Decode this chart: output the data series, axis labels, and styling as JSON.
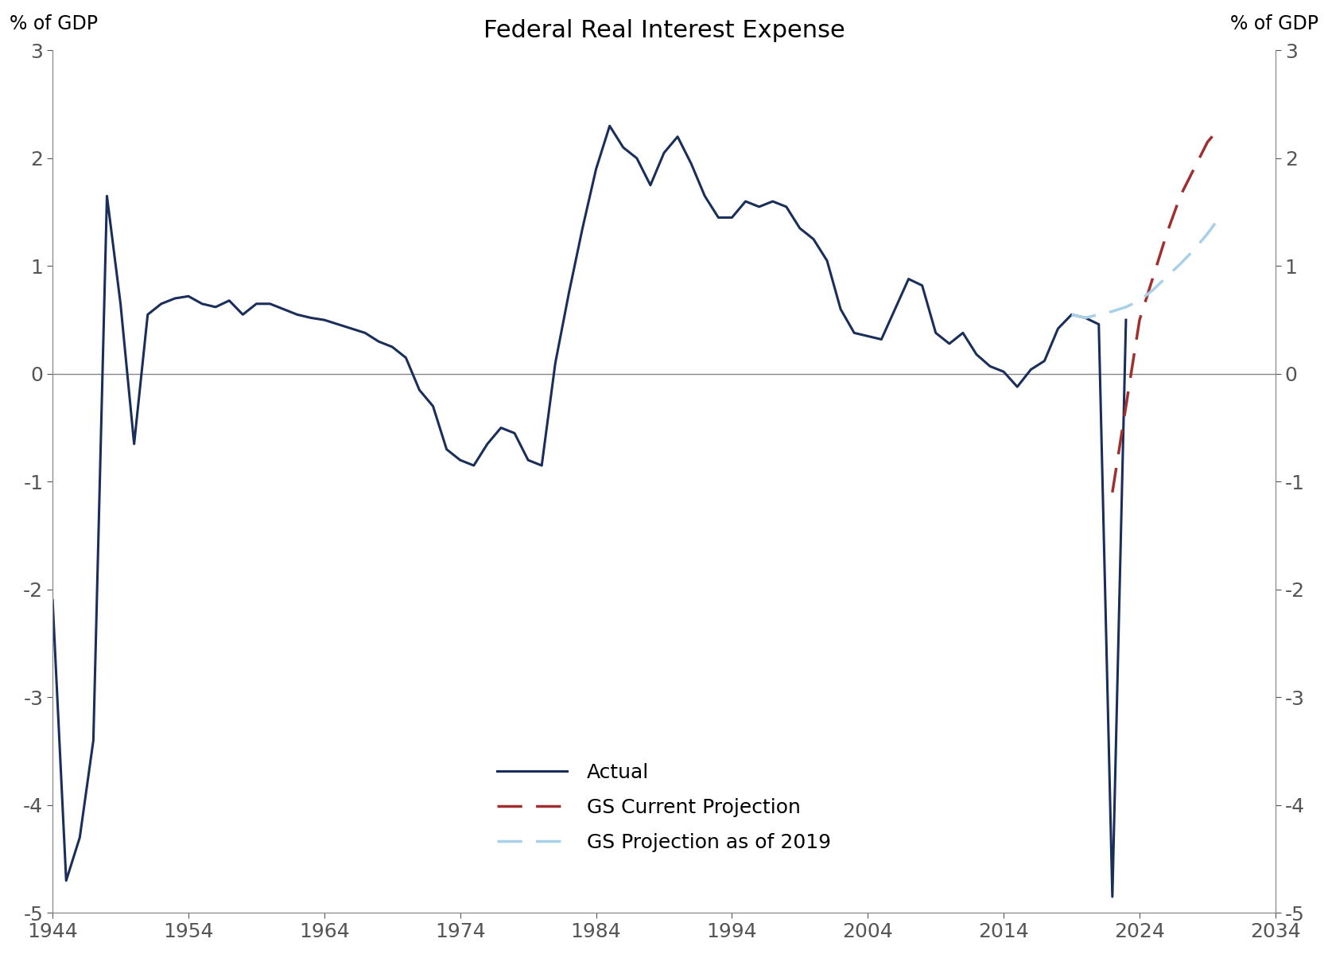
{
  "title": "Federal Real Interest Expense",
  "ylabel_left": "% of GDP",
  "ylabel_right": "% of GDP",
  "ylim": [
    -5,
    3
  ],
  "yticks": [
    -5,
    -4,
    -3,
    -2,
    -1,
    0,
    1,
    2,
    3
  ],
  "xlim": [
    1944,
    2034
  ],
  "xticks": [
    1944,
    1954,
    1964,
    1974,
    1984,
    1994,
    2004,
    2014,
    2024,
    2034
  ],
  "background_color": "#ffffff",
  "actual_color": "#1a2e5a",
  "gs_current_color": "#a03030",
  "gs_2019_color": "#a8d0e6",
  "actual_data": {
    "years": [
      1944,
      1945,
      1946,
      1947,
      1948,
      1949,
      1950,
      1951,
      1952,
      1953,
      1954,
      1955,
      1956,
      1957,
      1958,
      1959,
      1960,
      1961,
      1962,
      1963,
      1964,
      1965,
      1966,
      1967,
      1968,
      1969,
      1970,
      1971,
      1972,
      1973,
      1974,
      1975,
      1976,
      1977,
      1978,
      1979,
      1980,
      1981,
      1982,
      1983,
      1984,
      1985,
      1986,
      1987,
      1988,
      1989,
      1990,
      1991,
      1992,
      1993,
      1994,
      1995,
      1996,
      1997,
      1998,
      1999,
      2000,
      2001,
      2002,
      2003,
      2004,
      2005,
      2006,
      2007,
      2008,
      2009,
      2010,
      2011,
      2012,
      2013,
      2014,
      2015,
      2016,
      2017,
      2018,
      2019,
      2020,
      2021,
      2022,
      2023
    ],
    "values": [
      -2.1,
      -4.7,
      -4.3,
      -3.4,
      1.65,
      0.65,
      -0.65,
      0.55,
      0.65,
      0.7,
      0.72,
      0.65,
      0.62,
      0.68,
      0.55,
      0.65,
      0.65,
      0.6,
      0.55,
      0.52,
      0.5,
      0.46,
      0.42,
      0.38,
      0.3,
      0.25,
      0.15,
      -0.15,
      -0.3,
      -0.7,
      -0.8,
      -0.85,
      -0.65,
      -0.5,
      -0.55,
      -0.8,
      -0.85,
      0.1,
      0.75,
      1.35,
      1.9,
      2.3,
      2.1,
      2.0,
      1.75,
      2.05,
      2.2,
      1.95,
      1.65,
      1.45,
      1.45,
      1.6,
      1.55,
      1.6,
      1.55,
      1.35,
      1.25,
      1.05,
      0.6,
      0.38,
      0.35,
      0.32,
      0.6,
      0.88,
      0.82,
      0.38,
      0.28,
      0.38,
      0.18,
      0.07,
      0.02,
      -0.12,
      0.04,
      0.12,
      0.42,
      0.55,
      0.52,
      0.46,
      -4.85,
      0.5
    ]
  },
  "gs_current_data": {
    "years": [
      2022,
      2023,
      2024,
      2025,
      2026,
      2027,
      2028,
      2029,
      2030
    ],
    "values": [
      -1.1,
      -0.3,
      0.5,
      0.9,
      1.3,
      1.65,
      1.9,
      2.15,
      2.3
    ]
  },
  "gs_2019_data": {
    "years": [
      2019,
      2020,
      2021,
      2022,
      2023,
      2024,
      2025,
      2026,
      2027,
      2028,
      2029,
      2030
    ],
    "values": [
      0.55,
      0.52,
      0.55,
      0.58,
      0.62,
      0.68,
      0.78,
      0.9,
      1.02,
      1.15,
      1.3,
      1.47
    ]
  },
  "legend": {
    "actual_label": "Actual",
    "gs_current_label": "GS Current Projection",
    "gs_2019_label": "GS Projection as of 2019"
  }
}
